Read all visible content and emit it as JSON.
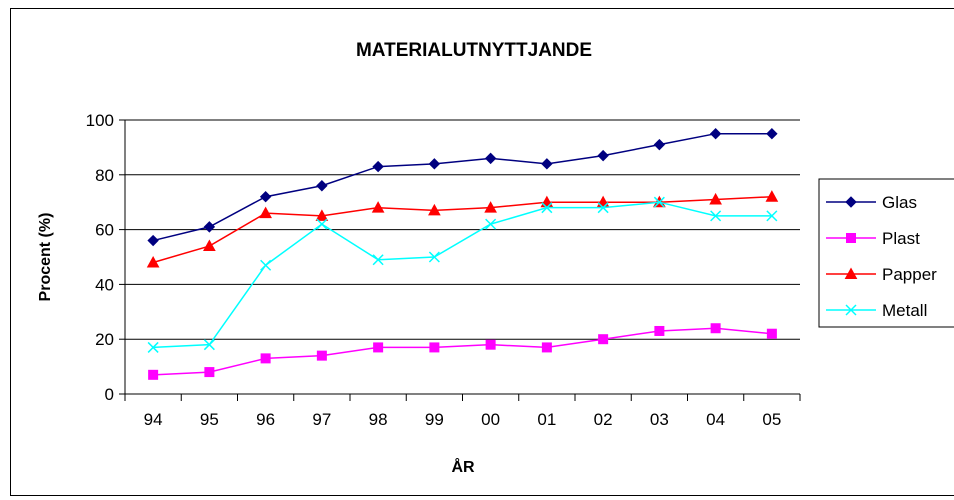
{
  "chart_data": {
    "type": "line",
    "title": "MATERIALUTNYTTJANDE",
    "xlabel": "ÅR",
    "ylabel": "Procent (%)",
    "categories": [
      "94",
      "95",
      "96",
      "97",
      "98",
      "99",
      "00",
      "01",
      "02",
      "03",
      "04",
      "05"
    ],
    "ylim": [
      0,
      100
    ],
    "yticks": [
      0,
      20,
      40,
      60,
      80,
      100
    ],
    "grid": true,
    "legend": "right",
    "series": [
      {
        "name": "Glas",
        "color": "#000080",
        "marker": "diamond",
        "values": [
          56,
          61,
          72,
          76,
          83,
          84,
          86,
          84,
          87,
          91,
          95,
          95
        ]
      },
      {
        "name": "Plast",
        "color": "#ff00ff",
        "marker": "square",
        "values": [
          7,
          8,
          13,
          14,
          17,
          17,
          18,
          17,
          20,
          23,
          24,
          22
        ]
      },
      {
        "name": "Papper",
        "color": "#ff0000",
        "marker": "triangle",
        "values": [
          48,
          54,
          66,
          65,
          68,
          67,
          68,
          70,
          70,
          70,
          71,
          72
        ]
      },
      {
        "name": "Metall",
        "color": "#00ffff",
        "marker": "x",
        "values": [
          17,
          18,
          47,
          62,
          49,
          50,
          62,
          68,
          68,
          70,
          65,
          65
        ]
      }
    ]
  }
}
